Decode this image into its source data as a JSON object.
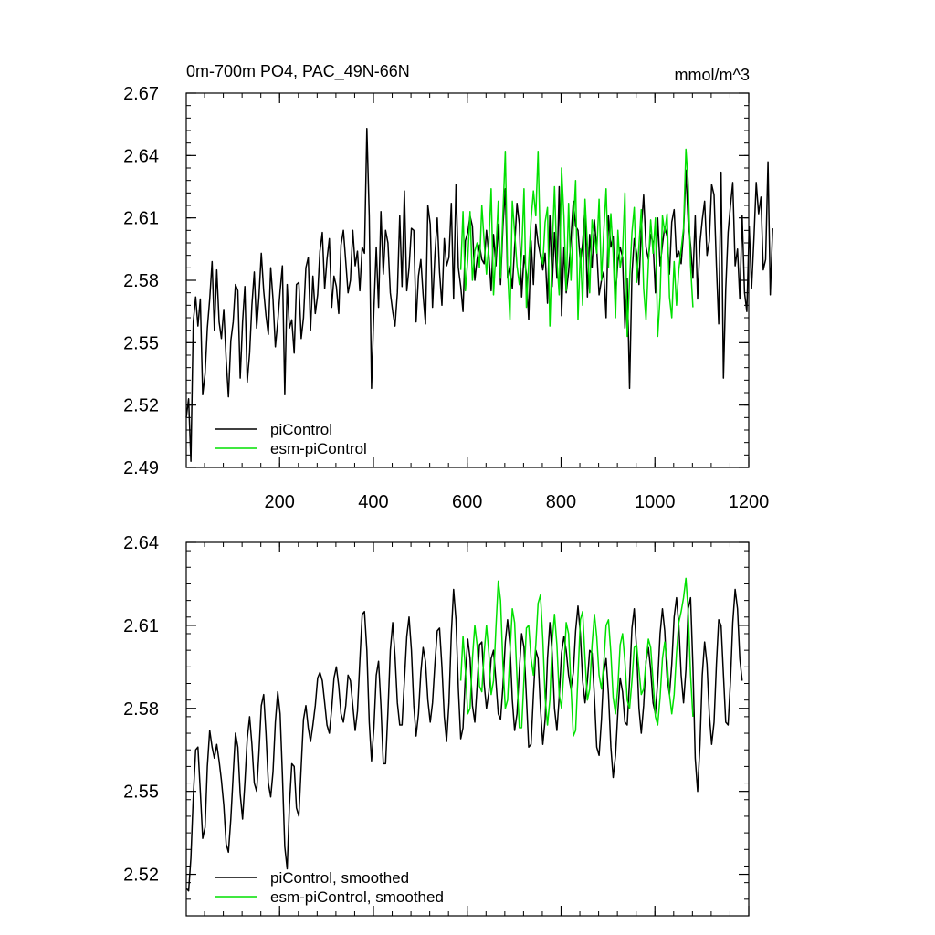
{
  "colors": {
    "series_picontrol": "#000000",
    "series_esm": "#00e000",
    "axis": "#000000",
    "background": "#ffffff"
  },
  "chart_data": [
    {
      "type": "line",
      "title": "0m-700m PO4, PAC_49N-66N",
      "units": "mmol/m^3",
      "xlabel": "",
      "ylabel": "",
      "xlim": [
        1,
        1200
      ],
      "ylim": [
        2.49,
        2.67
      ],
      "yticks": [
        2.49,
        2.52,
        2.55,
        2.58,
        2.61,
        2.64,
        2.67
      ],
      "ytick_labels": [
        "2.49",
        "2.52",
        "2.55",
        "2.58",
        "2.61",
        "2.64",
        "2.67"
      ],
      "xticks": [
        200,
        400,
        600,
        800,
        1000,
        1200
      ],
      "xtick_labels": [
        "200",
        "400",
        "600",
        "800",
        "1000",
        "1200"
      ],
      "legend_position": "bottom-left",
      "series": [
        {
          "name": "piControl",
          "color": "#000000",
          "x_start": 1,
          "x_step": 5,
          "values": [
            2.514,
            2.523,
            2.493,
            2.56,
            2.572,
            2.558,
            2.571,
            2.525,
            2.535,
            2.557,
            2.571,
            2.589,
            2.556,
            2.585,
            2.56,
            2.552,
            2.566,
            2.542,
            2.524,
            2.551,
            2.56,
            2.578,
            2.575,
            2.533,
            2.56,
            2.577,
            2.531,
            2.545,
            2.568,
            2.584,
            2.557,
            2.572,
            2.593,
            2.575,
            2.563,
            2.554,
            2.586,
            2.571,
            2.548,
            2.56,
            2.575,
            2.587,
            2.525,
            2.578,
            2.557,
            2.561,
            2.545,
            2.578,
            2.579,
            2.552,
            2.562,
            2.586,
            2.591,
            2.556,
            2.582,
            2.564,
            2.573,
            2.594,
            2.603,
            2.576,
            2.59,
            2.6,
            2.567,
            2.582,
            2.577,
            2.564,
            2.597,
            2.604,
            2.589,
            2.574,
            2.58,
            2.604,
            2.587,
            2.594,
            2.575,
            2.596,
            2.593,
            2.653,
            2.611,
            2.528,
            2.566,
            2.596,
            2.567,
            2.613,
            2.583,
            2.604,
            2.598,
            2.574,
            2.565,
            2.558,
            2.574,
            2.611,
            2.577,
            2.623,
            2.575,
            2.586,
            2.605,
            2.604,
            2.56,
            2.582,
            2.59,
            2.573,
            2.559,
            2.616,
            2.607,
            2.567,
            2.592,
            2.61,
            2.584,
            2.568,
            2.6,
            2.587,
            2.591,
            2.617,
            2.571,
            2.626,
            2.586,
            2.577,
            2.565,
            2.599,
            2.603,
            2.611,
            2.606,
            2.58,
            2.59,
            2.597,
            2.59,
            2.588,
            2.604,
            2.592,
            2.575,
            2.602,
            2.587,
            2.607,
            2.578,
            2.606,
            2.624,
            2.581,
            2.587,
            2.576,
            2.596,
            2.617,
            2.607,
            2.572,
            2.592,
            2.583,
            2.561,
            2.599,
            2.578,
            2.607,
            2.598,
            2.592,
            2.585,
            2.593,
            2.569,
            2.611,
            2.577,
            2.603,
            2.581,
            2.625,
            2.563,
            2.596,
            2.574,
            2.584,
            2.6,
            2.618,
            2.606,
            2.604,
            2.588,
            2.598,
            2.615,
            2.572,
            2.602,
            2.586,
            2.609,
            2.595,
            2.573,
            2.58,
            2.584,
            2.562,
            2.611,
            2.596,
            2.601,
            2.573,
            2.589,
            2.596,
            2.591,
            2.557,
            2.581,
            2.528,
            2.583,
            2.6,
            2.593,
            2.578,
            2.604,
            2.621,
            2.596,
            2.59,
            2.602,
            2.598,
            2.574,
            2.61,
            2.587,
            2.597,
            2.606,
            2.601,
            2.583,
            2.608,
            2.614,
            2.591,
            2.594,
            2.588,
            2.603,
            2.633,
            2.608,
            2.597,
            2.581,
            2.611,
            2.571,
            2.598,
            2.609,
            2.618,
            2.592,
            2.599,
            2.626,
            2.621,
            2.587,
            2.559,
            2.632,
            2.533,
            2.576,
            2.603,
            2.616,
            2.627,
            2.587,
            2.595,
            2.571,
            2.611,
            2.574,
            2.565,
            2.606,
            2.576,
            2.6,
            2.627,
            2.612,
            2.62,
            2.585,
            2.59,
            2.637,
            2.573,
            2.605
          ],
          "values_note": "annual-mean values read from chart at 5-year sampling"
        },
        {
          "name": "esm-piControl",
          "color": "#00e000",
          "x_start": 586,
          "x_step": 5,
          "values": [
            2.585,
            2.613,
            2.575,
            2.59,
            2.613,
            2.58,
            2.594,
            2.598,
            2.586,
            2.616,
            2.599,
            2.583,
            2.598,
            2.624,
            2.573,
            2.594,
            2.618,
            2.581,
            2.612,
            2.642,
            2.585,
            2.561,
            2.618,
            2.603,
            2.587,
            2.578,
            2.593,
            2.624,
            2.567,
            2.588,
            2.609,
            2.623,
            2.611,
            2.642,
            2.594,
            2.588,
            2.608,
            2.615,
            2.558,
            2.594,
            2.625,
            2.59,
            2.573,
            2.634,
            2.611,
            2.575,
            2.617,
            2.58,
            2.606,
            2.628,
            2.561,
            2.595,
            2.568,
            2.619,
            2.597,
            2.574,
            2.609,
            2.601,
            2.593,
            2.619,
            2.58,
            2.603,
            2.624,
            2.586,
            2.612,
            2.593,
            2.562,
            2.604,
            2.586,
            2.593,
            2.622,
            2.553,
            2.58,
            2.603,
            2.615,
            2.579,
            2.597,
            2.614,
            2.576,
            2.561,
            2.588,
            2.609,
            2.593,
            2.61,
            2.553,
            2.572,
            2.611,
            2.603,
            2.612,
            2.572,
            2.562,
            2.589,
            2.568,
            2.585,
            2.595,
            2.605,
            2.643,
            2.627,
            2.587,
            2.567
          ],
          "values_note": "annual-mean values read from chart at 5-year sampling"
        }
      ]
    },
    {
      "type": "line",
      "title": "",
      "xlim": [
        1,
        1200
      ],
      "ylim": [
        2.505,
        2.64
      ],
      "yticks": [
        2.52,
        2.55,
        2.58,
        2.61,
        2.64
      ],
      "ytick_labels": [
        "2.52",
        "2.55",
        "2.58",
        "2.61",
        "2.64"
      ],
      "xticks": [
        200,
        400,
        600,
        800,
        1000,
        1200
      ],
      "xtick_labels": [],
      "legend_position": "bottom-left",
      "series": [
        {
          "name": "piControl, smoothed",
          "color": "#000000",
          "x_start": 1,
          "x_step": 5,
          "values": [
            2.515,
            2.514,
            2.526,
            2.548,
            2.565,
            2.566,
            2.55,
            2.533,
            2.537,
            2.559,
            2.572,
            2.566,
            2.562,
            2.567,
            2.561,
            2.554,
            2.545,
            2.531,
            2.528,
            2.54,
            2.556,
            2.571,
            2.566,
            2.549,
            2.54,
            2.553,
            2.569,
            2.577,
            2.567,
            2.553,
            2.55,
            2.564,
            2.581,
            2.585,
            2.571,
            2.553,
            2.548,
            2.557,
            2.575,
            2.586,
            2.578,
            2.556,
            2.53,
            2.522,
            2.545,
            2.56,
            2.559,
            2.544,
            2.541,
            2.559,
            2.576,
            2.581,
            2.573,
            2.568,
            2.574,
            2.581,
            2.591,
            2.593,
            2.59,
            2.582,
            2.574,
            2.571,
            2.58,
            2.591,
            2.595,
            2.588,
            2.578,
            2.575,
            2.581,
            2.592,
            2.59,
            2.581,
            2.572,
            2.579,
            2.597,
            2.614,
            2.615,
            2.601,
            2.575,
            2.561,
            2.573,
            2.592,
            2.597,
            2.581,
            2.56,
            2.56,
            2.579,
            2.601,
            2.611,
            2.599,
            2.582,
            2.574,
            2.574,
            2.59,
            2.606,
            2.613,
            2.601,
            2.581,
            2.57,
            2.578,
            2.593,
            2.602,
            2.597,
            2.583,
            2.575,
            2.582,
            2.596,
            2.608,
            2.609,
            2.595,
            2.577,
            2.568,
            2.582,
            2.607,
            2.623,
            2.612,
            2.587,
            2.569,
            2.573,
            2.592,
            2.605,
            2.598,
            2.581,
            2.575,
            2.588,
            2.603,
            2.604,
            2.589,
            2.58,
            2.586,
            2.598,
            2.601,
            2.59,
            2.578,
            2.576,
            2.588,
            2.604,
            2.612,
            2.603,
            2.583,
            2.572,
            2.578,
            2.594,
            2.607,
            2.602,
            2.584,
            2.566,
            2.567,
            2.585,
            2.601,
            2.598,
            2.58,
            2.567,
            2.576,
            2.598,
            2.611,
            2.6,
            2.58,
            2.572,
            2.584,
            2.6,
            2.606,
            2.601,
            2.592,
            2.587,
            2.593,
            2.608,
            2.617,
            2.607,
            2.59,
            2.582,
            2.59,
            2.601,
            2.6,
            2.584,
            2.566,
            2.563,
            2.576,
            2.593,
            2.598,
            2.585,
            2.566,
            2.555,
            2.563,
            2.579,
            2.591,
            2.586,
            2.575,
            2.574,
            2.59,
            2.609,
            2.616,
            2.601,
            2.58,
            2.571,
            2.581,
            2.597,
            2.602,
            2.594,
            2.582,
            2.578,
            2.59,
            2.607,
            2.616,
            2.608,
            2.591,
            2.585,
            2.596,
            2.613,
            2.62,
            2.61,
            2.592,
            2.582,
            2.594,
            2.616,
            2.62,
            2.595,
            2.562,
            2.55,
            2.567,
            2.592,
            2.604,
            2.596,
            2.578,
            2.567,
            2.575,
            2.596,
            2.612,
            2.61,
            2.592,
            2.575,
            2.574,
            2.59,
            2.611,
            2.623,
            2.616,
            2.598,
            2.59
          ],
          "values_note": "10-year smoothed values read from chart at 5-year sampling"
        },
        {
          "name": "esm-piControl, smoothed",
          "color": "#00e000",
          "x_start": 586,
          "x_step": 5,
          "values": [
            2.59,
            2.606,
            2.594,
            2.578,
            2.58,
            2.598,
            2.61,
            2.603,
            2.588,
            2.586,
            2.6,
            2.61,
            2.6,
            2.585,
            2.59,
            2.609,
            2.626,
            2.619,
            2.596,
            2.58,
            2.583,
            2.6,
            2.616,
            2.611,
            2.591,
            2.573,
            2.573,
            2.591,
            2.609,
            2.61,
            2.598,
            2.592,
            2.603,
            2.618,
            2.621,
            2.605,
            2.584,
            2.574,
            2.583,
            2.604,
            2.614,
            2.603,
            2.585,
            2.58,
            2.594,
            2.611,
            2.607,
            2.588,
            2.57,
            2.572,
            2.592,
            2.612,
            2.615,
            2.598,
            2.583,
            2.587,
            2.603,
            2.614,
            2.606,
            2.592,
            2.587,
            2.596,
            2.61,
            2.612,
            2.6,
            2.584,
            2.578,
            2.588,
            2.603,
            2.607,
            2.597,
            2.583,
            2.58,
            2.59,
            2.602,
            2.603,
            2.594,
            2.585,
            2.587,
            2.597,
            2.605,
            2.602,
            2.59,
            2.577,
            2.574,
            2.584,
            2.598,
            2.604,
            2.597,
            2.585,
            2.578,
            2.585,
            2.6,
            2.611,
            2.615,
            2.62,
            2.627,
            2.615,
            2.592,
            2.577
          ],
          "values_note": "10-year smoothed values read from chart at 5-year sampling"
        }
      ]
    }
  ]
}
